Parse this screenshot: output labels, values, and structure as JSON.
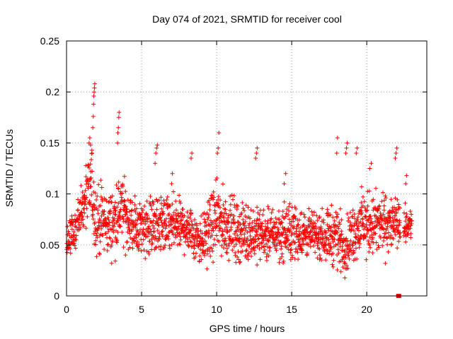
{
  "chart_data": {
    "type": "scatter",
    "title": "Day 074 of 2021, SRMTID for receiver cool",
    "xlabel": "GPS time / hours",
    "ylabel": "SRMTID / TECUs",
    "xlim": [
      0,
      24
    ],
    "ylim": [
      0,
      0.25
    ],
    "xticks": [
      0,
      5,
      10,
      15,
      20
    ],
    "xtick_labels": [
      "0",
      "5",
      "10",
      "15",
      "20"
    ],
    "yticks": [
      0,
      0.05,
      0.1,
      0.15,
      0.2,
      0.25
    ],
    "ytick_labels": [
      "0",
      "0.05",
      "0.1",
      "0.15",
      "0.2",
      "0.25"
    ],
    "grid": true,
    "marker": "+",
    "series": [
      {
        "name": "SRMTID",
        "color": "#ff0000",
        "profile": [
          {
            "x": 0.0,
            "lo": 0.035,
            "hi": 0.075
          },
          {
            "x": 0.5,
            "lo": 0.04,
            "hi": 0.09
          },
          {
            "x": 1.0,
            "lo": 0.05,
            "hi": 0.11
          },
          {
            "x": 1.6,
            "lo": 0.06,
            "hi": 0.16
          },
          {
            "x": 2.0,
            "lo": 0.03,
            "hi": 0.12
          },
          {
            "x": 3.0,
            "lo": 0.03,
            "hi": 0.11
          },
          {
            "x": 3.6,
            "lo": 0.04,
            "hi": 0.13
          },
          {
            "x": 4.5,
            "lo": 0.035,
            "hi": 0.1
          },
          {
            "x": 6.0,
            "lo": 0.03,
            "hi": 0.11
          },
          {
            "x": 8.0,
            "lo": 0.035,
            "hi": 0.1
          },
          {
            "x": 9.0,
            "lo": 0.02,
            "hi": 0.09
          },
          {
            "x": 10.0,
            "lo": 0.03,
            "hi": 0.12
          },
          {
            "x": 11.5,
            "lo": 0.025,
            "hi": 0.1
          },
          {
            "x": 13.5,
            "lo": 0.03,
            "hi": 0.09
          },
          {
            "x": 15.0,
            "lo": 0.025,
            "hi": 0.1
          },
          {
            "x": 16.5,
            "lo": 0.035,
            "hi": 0.085
          },
          {
            "x": 18.0,
            "lo": 0.02,
            "hi": 0.1
          },
          {
            "x": 18.5,
            "lo": 0.015,
            "hi": 0.08
          },
          {
            "x": 19.5,
            "lo": 0.03,
            "hi": 0.11
          },
          {
            "x": 21.0,
            "lo": 0.03,
            "hi": 0.11
          },
          {
            "x": 22.0,
            "lo": 0.04,
            "hi": 0.1
          },
          {
            "x": 22.8,
            "lo": 0.05,
            "hi": 0.09
          }
        ],
        "spikes": [
          [
            1.5,
            0.15
          ],
          [
            1.55,
            0.155
          ],
          [
            1.6,
            0.148
          ],
          [
            1.7,
            0.14
          ],
          [
            1.75,
            0.165
          ],
          [
            1.78,
            0.176
          ],
          [
            1.8,
            0.188
          ],
          [
            1.82,
            0.196
          ],
          [
            1.84,
            0.2
          ],
          [
            1.86,
            0.204
          ],
          [
            1.88,
            0.208
          ],
          [
            3.4,
            0.15
          ],
          [
            3.42,
            0.16
          ],
          [
            3.45,
            0.165
          ],
          [
            3.48,
            0.175
          ],
          [
            3.5,
            0.18
          ],
          [
            5.9,
            0.13
          ],
          [
            5.95,
            0.14
          ],
          [
            6.0,
            0.145
          ],
          [
            6.05,
            0.148
          ],
          [
            7.0,
            0.11
          ],
          [
            7.05,
            0.12
          ],
          [
            8.3,
            0.135
          ],
          [
            8.35,
            0.14
          ],
          [
            10.05,
            0.14
          ],
          [
            10.1,
            0.145
          ],
          [
            10.15,
            0.16
          ],
          [
            12.6,
            0.135
          ],
          [
            12.65,
            0.14
          ],
          [
            12.7,
            0.145
          ],
          [
            14.5,
            0.11
          ],
          [
            14.6,
            0.12
          ],
          [
            18.0,
            0.14
          ],
          [
            18.05,
            0.155
          ],
          [
            18.6,
            0.14
          ],
          [
            18.65,
            0.145
          ],
          [
            18.7,
            0.15
          ],
          [
            19.3,
            0.14
          ],
          [
            19.35,
            0.145
          ],
          [
            20.2,
            0.125
          ],
          [
            20.3,
            0.13
          ],
          [
            21.9,
            0.135
          ],
          [
            21.95,
            0.14
          ],
          [
            22.0,
            0.145
          ],
          [
            22.6,
            0.11
          ],
          [
            22.65,
            0.118
          ]
        ],
        "gap": [
          22.25,
          22.45
        ],
        "x_end": 23.0,
        "n_points": 2000,
        "zero_points": [
          [
            22.1,
            0.0
          ],
          [
            22.15,
            0.0
          ]
        ]
      }
    ]
  }
}
